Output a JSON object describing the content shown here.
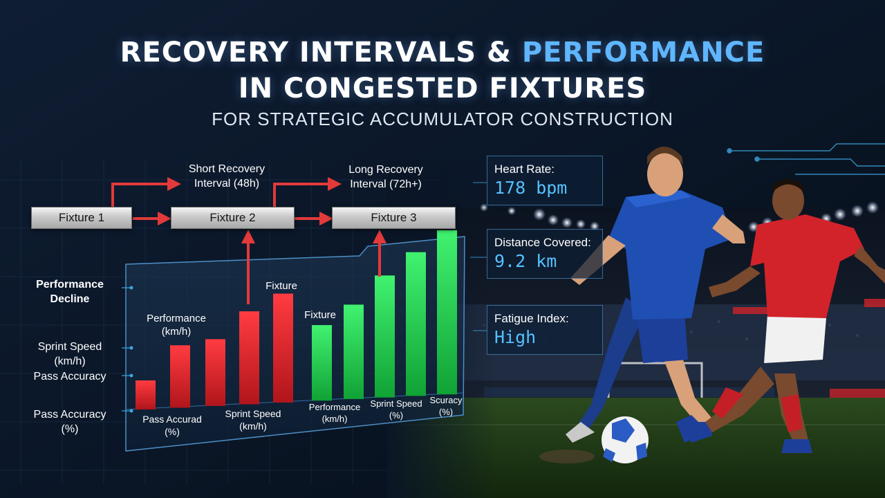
{
  "header": {
    "title_line1_part1": "RECOVERY INTERVALS &",
    "title_line1_part2": "PERFORMANCE",
    "title_line2": "IN CONGESTED FIXTURES",
    "subtitle": "FOR STRATEGIC ACCUMULATOR CONSTRUCTION"
  },
  "flow": {
    "fixtures": [
      "Fixture 1",
      "Fixture 2",
      "Fixture 3"
    ],
    "short_recovery": [
      "Short Recovery",
      "Interval (48h)"
    ],
    "long_recovery": [
      "Long Recovery",
      "Interval (72h+)"
    ]
  },
  "side_labels": {
    "performance_decline": [
      "Performance",
      "Decline"
    ],
    "sprint_speed": [
      "Sprint Speed",
      "(km/h)"
    ],
    "pass_accuracy_mid": "Pass Accuracy",
    "pass_accuracy_bottom": [
      "Pass Accuracy",
      "(%)"
    ]
  },
  "chart_labels": {
    "performance_left": [
      "Performance",
      "(km/h)"
    ],
    "fixture_mid": "Fixture",
    "fixture_left": "Fixture",
    "bottom_1": [
      "Pass Accurad",
      "(%)"
    ],
    "bottom_2": [
      "Sprint Speed",
      "(km/h)"
    ],
    "bottom_3": [
      "Performance",
      "(km/h)"
    ],
    "bottom_4": [
      "Sprint Speed",
      "(%)"
    ],
    "bottom_5": [
      "Scuracy",
      "(%)"
    ]
  },
  "metrics": [
    {
      "label": "Heart Rate:",
      "value": "178 bpm"
    },
    {
      "label": "Distance Covered:",
      "value": "9.2 km"
    },
    {
      "label": "Fatigue Index:",
      "value": "High"
    }
  ],
  "colors": {
    "accent_blue": "#5fb6ff",
    "value_blue": "#55c2ff",
    "bar_red": "#e0262c",
    "bar_green": "#1fc64a",
    "arrow_red": "#e23a3a",
    "player_blue_kit": "#1f4fb3",
    "player_red_kit": "#d2232a"
  },
  "chart_data": {
    "type": "bar",
    "series": [
      {
        "values": [
          2,
          4.3,
          4.6,
          6.4,
          7.5
        ]
      },
      {
        "values": [
          5.2,
          6.5,
          8.4,
          9.9,
          11.3
        ]
      }
    ]
  }
}
